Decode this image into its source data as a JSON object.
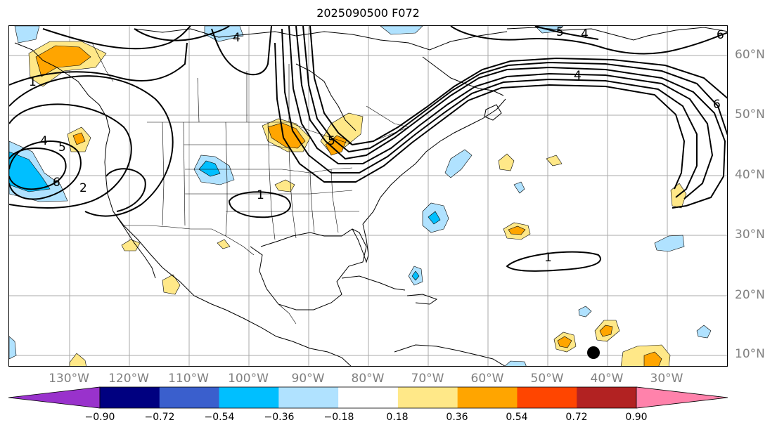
{
  "title": "2025090500 F072",
  "latitude_labels": [
    "60°N",
    "50°N",
    "40°N",
    "30°N",
    "20°N",
    "10°N"
  ],
  "longitude_labels": [
    "130°W",
    "120°W",
    "110°W",
    "100°W",
    "90°W",
    "80°W",
    "70°W",
    "60°W",
    "50°W",
    "40°W",
    "30°W"
  ],
  "contour_labels": [
    "4",
    "5",
    "6",
    "2",
    "1",
    "4",
    "5",
    "6",
    "4",
    "5",
    "4",
    "6",
    "1",
    "1"
  ],
  "colorbar": {
    "ticks": [
      "−0.90",
      "−0.72",
      "−0.54",
      "−0.36",
      "−0.18",
      "0.18",
      "0.36",
      "0.54",
      "0.72",
      "0.90"
    ],
    "colors": {
      "under": "#9932cc",
      "bins": [
        "#000080",
        "#3a5fcd",
        "#00bfff",
        "#b0e2ff",
        "#ffffff",
        "#ffe888",
        "#ffa500",
        "#ff4500",
        "#b22222",
        "#ff82ab"
      ],
      "over": "#ff82ab"
    }
  },
  "marker": "storm-position-dot"
}
